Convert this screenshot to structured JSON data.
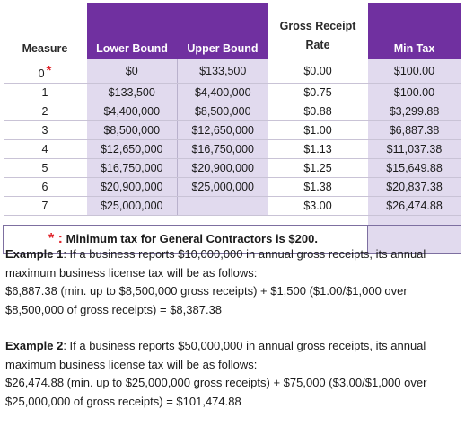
{
  "table": {
    "headers": {
      "measure": "Measure",
      "lower": "Lower Bound",
      "upper": "Upper Bound",
      "rate_line1": "Gross Receipt",
      "rate_line2": "Rate",
      "min": "Min Tax"
    },
    "rows": [
      {
        "measure": "0",
        "lower": "$0",
        "upper": "$133,500",
        "rate": "$0.00",
        "min": "$100.00"
      },
      {
        "measure": "1",
        "lower": "$133,500",
        "upper": "$4,400,000",
        "rate": "$0.75",
        "min": "$100.00"
      },
      {
        "measure": "2",
        "lower": "$4,400,000",
        "upper": "$8,500,000",
        "rate": "$0.88",
        "min": "$3,299.88"
      },
      {
        "measure": "3",
        "lower": "$8,500,000",
        "upper": "$12,650,000",
        "rate": "$1.00",
        "min": "$6,887.38"
      },
      {
        "measure": "4",
        "lower": "$12,650,000",
        "upper": "$16,750,000",
        "rate": "$1.13",
        "min": "$11,037.38"
      },
      {
        "measure": "5",
        "lower": "$16,750,000",
        "upper": "$20,900,000",
        "rate": "$1.25",
        "min": "$15,649.88"
      },
      {
        "measure": "6",
        "lower": "$20,900,000",
        "upper": "$25,000,000",
        "rate": "$1.38",
        "min": "$20,837.38"
      },
      {
        "measure": "7",
        "lower": "$25,000,000",
        "upper": "",
        "rate": "$3.00",
        "min": "$26,474.88"
      }
    ],
    "asterisk": "*",
    "footnote_marker": "* :",
    "footnote_text": "Minimum tax for General Contractors is $200."
  },
  "examples": [
    {
      "label": "Example 1",
      "line1": ": If a business reports $10,000,000 in annual gross receipts, its annual",
      "line2": "maximum business license tax will be as follows:",
      "line3": "$6,887.38 (min. up to $8,500,000 gross receipts) + $1,500 ($1.00/$1,000 over",
      "line4": "$8,500,000 of gross receipts) = $8,387.38"
    },
    {
      "label": "Example 2",
      "line1": ": If a business reports $50,000,000 in annual gross receipts, its annual",
      "line2": "maximum business license tax will be as follows:",
      "line3": "$26,474.88 (min. up to $25,000,000 gross receipts) + $75,000 ($3.00/$1,000 over",
      "line4": "$25,000,000 of gross receipts) = $101,474.88"
    }
  ],
  "colors": {
    "header_purple": "#7030a0",
    "row_lavender": "#e1daee",
    "asterisk_red": "#e0252b"
  }
}
